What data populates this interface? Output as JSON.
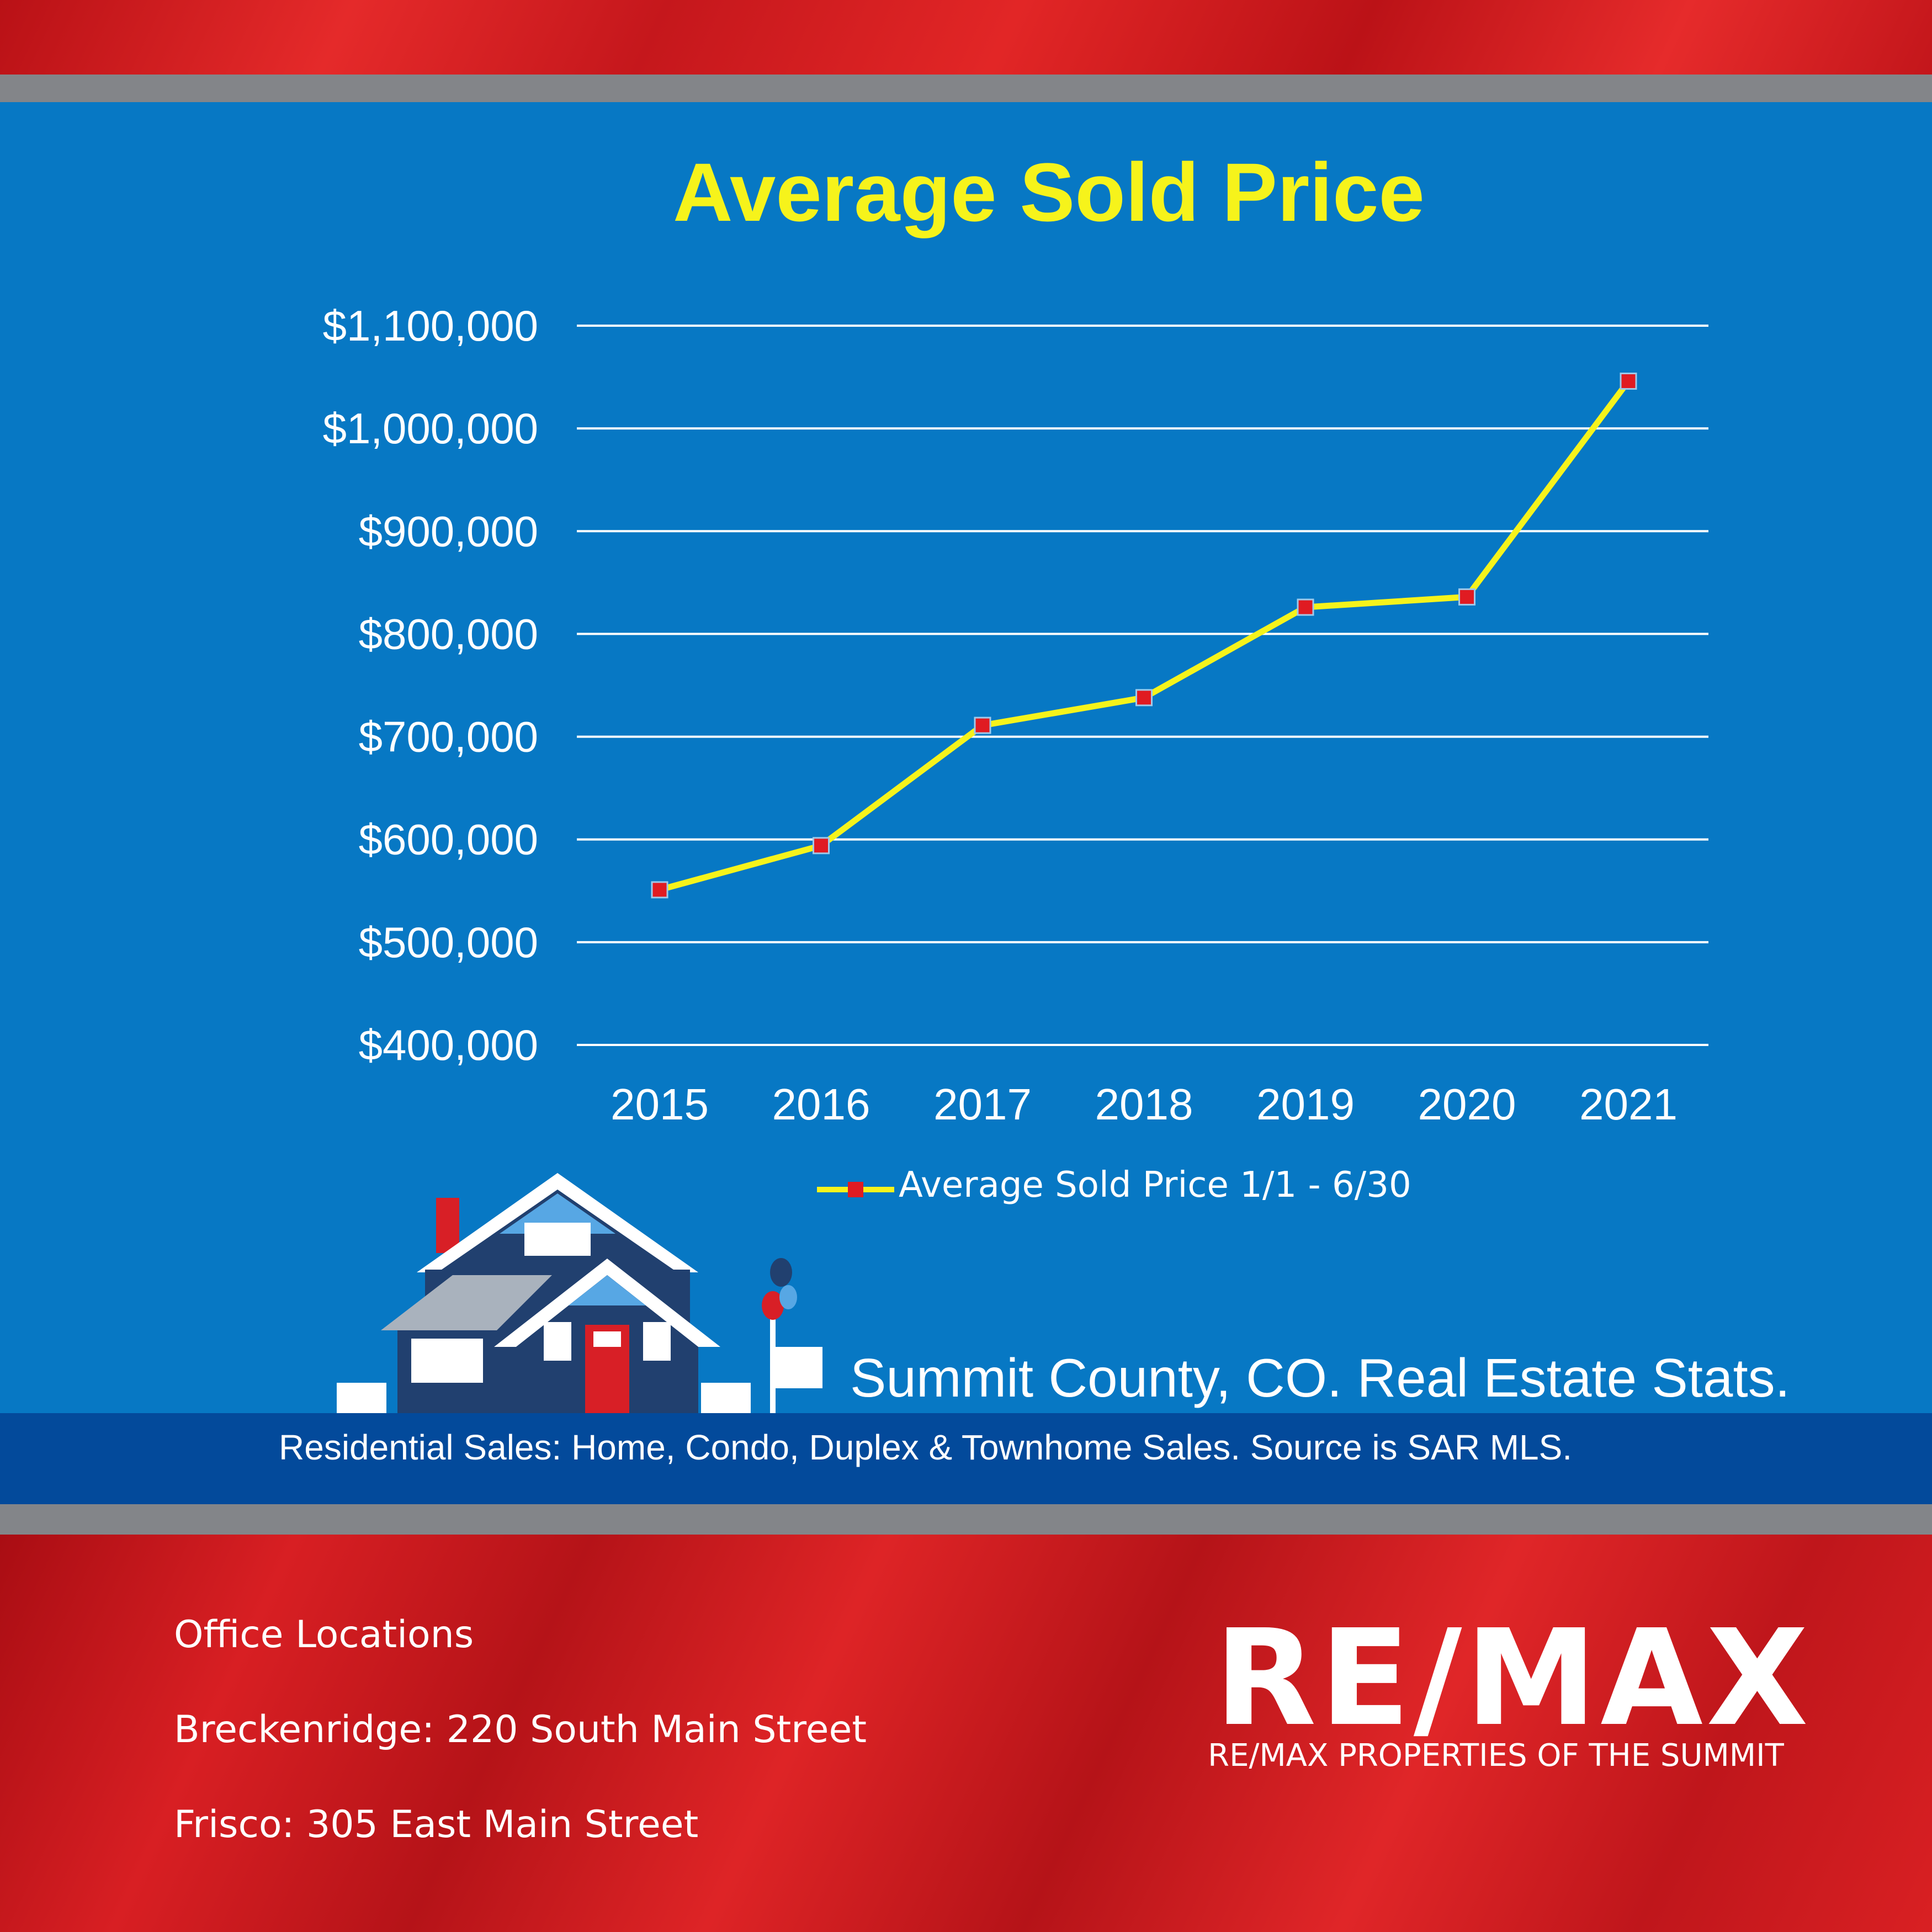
{
  "chart_data": {
    "type": "line",
    "title": "Average Sold Price",
    "categories": [
      "2015",
      "2016",
      "2017",
      "2018",
      "2019",
      "2020",
      "2021"
    ],
    "series": [
      {
        "name": "Average Sold Price 1/1 - 6/30",
        "values": [
          551000,
          594000,
          711000,
          738000,
          826000,
          836000,
          1046000
        ]
      }
    ],
    "y_ticks": [
      "$400,000",
      "$500,000",
      "$600,000",
      "$700,000",
      "$800,000",
      "$900,000",
      "$1,000,000",
      "$1,100,000"
    ],
    "ylim": [
      400000,
      1100000
    ],
    "grid": true,
    "legend_position": "bottom-center",
    "line_color": "#f6f31b",
    "marker_color": "#e01b22"
  },
  "stats": {
    "title": "Summit County, CO. Real Estate Stats.",
    "subtitle": "Residential Sales: Home, Condo, Duplex & Townhome  Sales. Source is SAR MLS."
  },
  "offices": {
    "heading": "Office Locations",
    "breckenridge": "Breckenridge: 220 South Main Street",
    "frisco": "Frisco: 305 East Main Street"
  },
  "brand": {
    "logo": "RE/MAX",
    "name": "RE/MAX PROPERTIES OF THE SUMMIT"
  }
}
